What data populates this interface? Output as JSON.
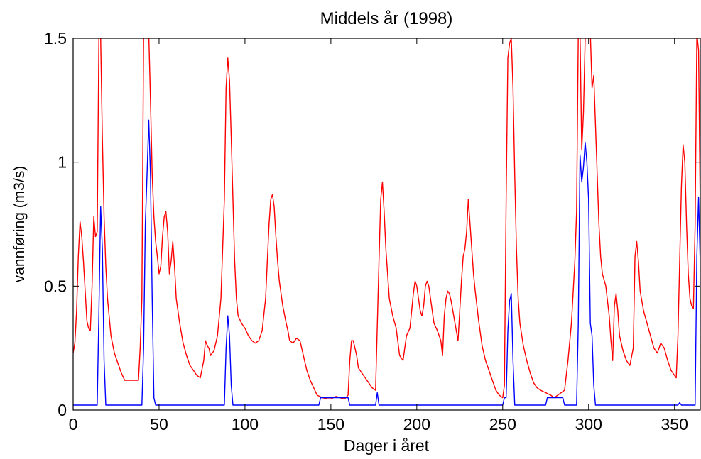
{
  "chart_data": {
    "type": "line",
    "title": "Middels år (1998)",
    "xlabel": "Dager i året",
    "ylabel": "vannføring (m3/s)",
    "xlim": [
      0,
      365
    ],
    "ylim": [
      0,
      1.5
    ],
    "x_ticks": [
      0,
      50,
      100,
      150,
      200,
      250,
      300,
      350
    ],
    "y_ticks": [
      0,
      0.5,
      1,
      1.5
    ],
    "y_tick_labels": [
      "0",
      "0.5",
      "1",
      "1.5"
    ],
    "grid": false,
    "legend": null,
    "series": [
      {
        "color": "#ff0000",
        "points": [
          [
            0,
            0.23
          ],
          [
            1,
            0.27
          ],
          [
            2,
            0.4
          ],
          [
            3,
            0.62
          ],
          [
            4,
            0.76
          ],
          [
            5,
            0.7
          ],
          [
            6,
            0.6
          ],
          [
            7,
            0.48
          ],
          [
            8,
            0.36
          ],
          [
            9,
            0.33
          ],
          [
            10,
            0.32
          ],
          [
            11,
            0.5
          ],
          [
            12,
            0.78
          ],
          [
            13,
            0.7
          ],
          [
            14,
            0.72
          ],
          [
            15,
            1.52
          ],
          [
            16,
            1.5
          ],
          [
            17,
            1.1
          ],
          [
            18,
            0.78
          ],
          [
            19,
            0.58
          ],
          [
            20,
            0.45
          ],
          [
            22,
            0.3
          ],
          [
            24,
            0.23
          ],
          [
            26,
            0.19
          ],
          [
            28,
            0.15
          ],
          [
            30,
            0.12
          ],
          [
            33,
            0.12
          ],
          [
            36,
            0.12
          ],
          [
            38,
            0.12
          ],
          [
            39,
            0.25
          ],
          [
            40,
            0.45
          ],
          [
            41,
            1.52
          ],
          [
            42,
            1.52
          ],
          [
            43,
            1.5
          ],
          [
            44,
            1.52
          ],
          [
            45,
            1.25
          ],
          [
            46,
            0.95
          ],
          [
            47,
            0.78
          ],
          [
            48,
            0.68
          ],
          [
            49,
            0.62
          ],
          [
            50,
            0.55
          ],
          [
            51,
            0.58
          ],
          [
            52,
            0.7
          ],
          [
            53,
            0.78
          ],
          [
            54,
            0.8
          ],
          [
            55,
            0.72
          ],
          [
            56,
            0.55
          ],
          [
            57,
            0.6
          ],
          [
            58,
            0.68
          ],
          [
            59,
            0.58
          ],
          [
            60,
            0.45
          ],
          [
            62,
            0.35
          ],
          [
            64,
            0.27
          ],
          [
            66,
            0.22
          ],
          [
            68,
            0.18
          ],
          [
            70,
            0.16
          ],
          [
            72,
            0.14
          ],
          [
            74,
            0.13
          ],
          [
            76,
            0.2
          ],
          [
            77,
            0.28
          ],
          [
            78,
            0.26
          ],
          [
            79,
            0.25
          ],
          [
            80,
            0.22
          ],
          [
            82,
            0.24
          ],
          [
            84,
            0.3
          ],
          [
            86,
            0.45
          ],
          [
            88,
            0.85
          ],
          [
            89,
            1.3
          ],
          [
            90,
            1.42
          ],
          [
            91,
            1.33
          ],
          [
            92,
            1.1
          ],
          [
            93,
            0.85
          ],
          [
            94,
            0.6
          ],
          [
            95,
            0.45
          ],
          [
            96,
            0.38
          ],
          [
            98,
            0.35
          ],
          [
            100,
            0.33
          ],
          [
            102,
            0.3
          ],
          [
            104,
            0.28
          ],
          [
            106,
            0.27
          ],
          [
            108,
            0.28
          ],
          [
            110,
            0.32
          ],
          [
            112,
            0.45
          ],
          [
            113,
            0.6
          ],
          [
            114,
            0.75
          ],
          [
            115,
            0.85
          ],
          [
            116,
            0.87
          ],
          [
            117,
            0.82
          ],
          [
            118,
            0.7
          ],
          [
            119,
            0.6
          ],
          [
            120,
            0.52
          ],
          [
            122,
            0.42
          ],
          [
            124,
            0.35
          ],
          [
            125,
            0.32
          ],
          [
            126,
            0.28
          ],
          [
            128,
            0.27
          ],
          [
            130,
            0.29
          ],
          [
            132,
            0.28
          ],
          [
            134,
            0.22
          ],
          [
            136,
            0.16
          ],
          [
            138,
            0.12
          ],
          [
            140,
            0.09
          ],
          [
            142,
            0.06
          ],
          [
            145,
            0.05
          ],
          [
            148,
            0.045
          ],
          [
            150,
            0.045
          ],
          [
            153,
            0.055
          ],
          [
            155,
            0.05
          ],
          [
            158,
            0.045
          ],
          [
            160,
            0.06
          ],
          [
            161,
            0.2
          ],
          [
            162,
            0.28
          ],
          [
            163,
            0.28
          ],
          [
            164,
            0.25
          ],
          [
            165,
            0.22
          ],
          [
            166,
            0.17
          ],
          [
            168,
            0.15
          ],
          [
            170,
            0.13
          ],
          [
            172,
            0.11
          ],
          [
            174,
            0.09
          ],
          [
            176,
            0.08
          ],
          [
            178,
            0.6
          ],
          [
            179,
            0.85
          ],
          [
            180,
            0.92
          ],
          [
            181,
            0.8
          ],
          [
            182,
            0.65
          ],
          [
            183,
            0.55
          ],
          [
            184,
            0.45
          ],
          [
            186,
            0.38
          ],
          [
            188,
            0.33
          ],
          [
            190,
            0.22
          ],
          [
            192,
            0.2
          ],
          [
            194,
            0.3
          ],
          [
            196,
            0.33
          ],
          [
            197,
            0.4
          ],
          [
            198,
            0.47
          ],
          [
            199,
            0.52
          ],
          [
            200,
            0.5
          ],
          [
            201,
            0.45
          ],
          [
            202,
            0.4
          ],
          [
            203,
            0.38
          ],
          [
            204,
            0.42
          ],
          [
            205,
            0.5
          ],
          [
            206,
            0.52
          ],
          [
            207,
            0.5
          ],
          [
            208,
            0.45
          ],
          [
            210,
            0.35
          ],
          [
            212,
            0.32
          ],
          [
            214,
            0.28
          ],
          [
            215,
            0.22
          ],
          [
            216,
            0.38
          ],
          [
            217,
            0.45
          ],
          [
            218,
            0.48
          ],
          [
            219,
            0.47
          ],
          [
            220,
            0.44
          ],
          [
            221,
            0.4
          ],
          [
            222,
            0.36
          ],
          [
            224,
            0.28
          ],
          [
            226,
            0.52
          ],
          [
            227,
            0.62
          ],
          [
            228,
            0.65
          ],
          [
            229,
            0.72
          ],
          [
            230,
            0.85
          ],
          [
            231,
            0.75
          ],
          [
            232,
            0.65
          ],
          [
            233,
            0.55
          ],
          [
            234,
            0.48
          ],
          [
            236,
            0.36
          ],
          [
            238,
            0.26
          ],
          [
            240,
            0.2
          ],
          [
            242,
            0.16
          ],
          [
            244,
            0.12
          ],
          [
            246,
            0.08
          ],
          [
            248,
            0.06
          ],
          [
            250,
            0.05
          ],
          [
            251,
            0.1
          ],
          [
            252,
            0.85
          ],
          [
            253,
            1.42
          ],
          [
            254,
            1.48
          ],
          [
            255,
            1.5
          ],
          [
            256,
            1.3
          ],
          [
            257,
            0.95
          ],
          [
            258,
            0.65
          ],
          [
            259,
            0.45
          ],
          [
            260,
            0.35
          ],
          [
            262,
            0.26
          ],
          [
            264,
            0.2
          ],
          [
            266,
            0.15
          ],
          [
            268,
            0.11
          ],
          [
            270,
            0.09
          ],
          [
            272,
            0.08
          ],
          [
            275,
            0.07
          ],
          [
            278,
            0.06
          ],
          [
            280,
            0.05
          ],
          [
            282,
            0.06
          ],
          [
            284,
            0.07
          ],
          [
            286,
            0.08
          ],
          [
            288,
            0.2
          ],
          [
            290,
            0.35
          ],
          [
            292,
            0.6
          ],
          [
            293,
            0.8
          ],
          [
            294,
            1.52
          ],
          [
            295,
            1.52
          ],
          [
            296,
            1.05
          ],
          [
            297,
            1.2
          ],
          [
            298,
            1.5
          ],
          [
            299,
            1.52
          ],
          [
            300,
            1.55
          ],
          [
            301,
            1.52
          ],
          [
            302,
            1.3
          ],
          [
            303,
            1.35
          ],
          [
            304,
            1.15
          ],
          [
            305,
            0.95
          ],
          [
            306,
            0.75
          ],
          [
            307,
            0.62
          ],
          [
            308,
            0.55
          ],
          [
            310,
            0.5
          ],
          [
            312,
            0.38
          ],
          [
            313,
            0.28
          ],
          [
            314,
            0.2
          ],
          [
            315,
            0.42
          ],
          [
            316,
            0.47
          ],
          [
            317,
            0.4
          ],
          [
            318,
            0.3
          ],
          [
            320,
            0.24
          ],
          [
            322,
            0.2
          ],
          [
            324,
            0.18
          ],
          [
            326,
            0.25
          ],
          [
            327,
            0.62
          ],
          [
            328,
            0.68
          ],
          [
            329,
            0.6
          ],
          [
            330,
            0.48
          ],
          [
            332,
            0.4
          ],
          [
            334,
            0.35
          ],
          [
            336,
            0.3
          ],
          [
            338,
            0.25
          ],
          [
            340,
            0.23
          ],
          [
            342,
            0.27
          ],
          [
            344,
            0.25
          ],
          [
            346,
            0.2
          ],
          [
            348,
            0.16
          ],
          [
            350,
            0.14
          ],
          [
            351,
            0.13
          ],
          [
            352,
            0.3
          ],
          [
            353,
            0.6
          ],
          [
            354,
            0.9
          ],
          [
            355,
            1.07
          ],
          [
            356,
            1.0
          ],
          [
            357,
            0.75
          ],
          [
            358,
            0.55
          ],
          [
            359,
            0.45
          ],
          [
            360,
            0.42
          ],
          [
            361,
            0.41
          ],
          [
            362,
            0.75
          ],
          [
            363,
            1.52
          ],
          [
            364,
            1.45
          ],
          [
            365,
            0.78
          ]
        ]
      },
      {
        "color": "#0000ff",
        "points": [
          [
            0,
            0.02
          ],
          [
            14,
            0.02
          ],
          [
            15,
            0.4
          ],
          [
            16,
            0.82
          ],
          [
            17,
            0.65
          ],
          [
            18,
            0.2
          ],
          [
            19,
            0.02
          ],
          [
            40,
            0.02
          ],
          [
            41,
            0.25
          ],
          [
            42,
            0.75
          ],
          [
            43,
            0.95
          ],
          [
            44,
            1.17
          ],
          [
            45,
            0.95
          ],
          [
            46,
            0.45
          ],
          [
            47,
            0.05
          ],
          [
            48,
            0.02
          ],
          [
            88,
            0.02
          ],
          [
            89,
            0.25
          ],
          [
            90,
            0.38
          ],
          [
            91,
            0.3
          ],
          [
            92,
            0.1
          ],
          [
            93,
            0.02
          ],
          [
            143,
            0.02
          ],
          [
            144,
            0.05
          ],
          [
            160,
            0.05
          ],
          [
            161,
            0.02
          ],
          [
            176,
            0.02
          ],
          [
            177,
            0.07
          ],
          [
            178,
            0.02
          ],
          [
            250,
            0.02
          ],
          [
            251,
            0.05
          ],
          [
            252,
            0.05
          ],
          [
            253,
            0.32
          ],
          [
            254,
            0.44
          ],
          [
            255,
            0.47
          ],
          [
            256,
            0.2
          ],
          [
            257,
            0.02
          ],
          [
            275,
            0.02
          ],
          [
            276,
            0.05
          ],
          [
            285,
            0.05
          ],
          [
            286,
            0.02
          ],
          [
            293,
            0.02
          ],
          [
            294,
            0.35
          ],
          [
            295,
            1.03
          ],
          [
            296,
            0.92
          ],
          [
            297,
            0.98
          ],
          [
            298,
            1.08
          ],
          [
            299,
            1.0
          ],
          [
            300,
            0.85
          ],
          [
            301,
            0.35
          ],
          [
            302,
            0.3
          ],
          [
            303,
            0.1
          ],
          [
            304,
            0.02
          ],
          [
            352,
            0.02
          ],
          [
            353,
            0.03
          ],
          [
            354,
            0.02
          ],
          [
            362,
            0.02
          ],
          [
            363,
            0.62
          ],
          [
            364,
            0.86
          ],
          [
            365,
            0.58
          ]
        ]
      }
    ]
  }
}
